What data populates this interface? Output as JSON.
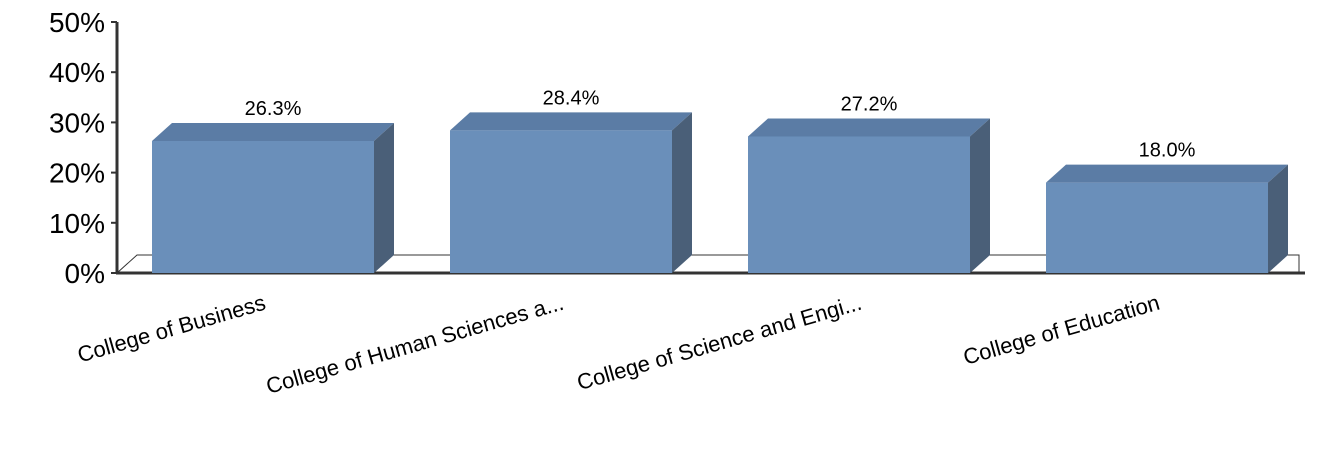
{
  "chart_data": {
    "type": "bar",
    "categories": [
      "College of Business",
      "College of Human Sciences a...",
      "College of Science and Engi...",
      "College of Education"
    ],
    "values": [
      26.3,
      28.4,
      27.2,
      18.0
    ],
    "data_labels": [
      "26.3%",
      "28.4%",
      "27.2%",
      "18.0%"
    ],
    "y_ticks": [
      "0%",
      "10%",
      "20%",
      "30%",
      "40%",
      "50%"
    ],
    "ylim": [
      0,
      50
    ],
    "grid": false,
    "three_d": true,
    "colors": {
      "front": "#6a8fba",
      "top": "#5b7ca5",
      "side": "#4a5f78"
    }
  }
}
